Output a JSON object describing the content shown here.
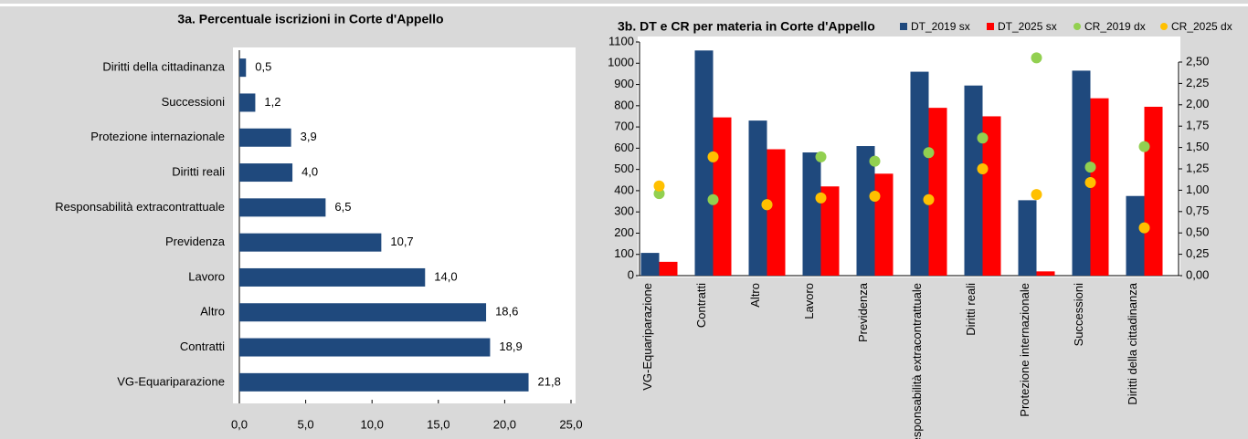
{
  "chart_data": [
    {
      "type": "hbar",
      "title": "3a. Percentuale iscrizioni in Corte d'Appello",
      "categories": [
        "Diritti della cittadinanza",
        "Successioni",
        "Protezione internazionale",
        "Diritti reali",
        "Responsabilità extracontrattuale",
        "Previdenza",
        "Lavoro",
        "Altro",
        "Contratti",
        "VG-Equariparazione"
      ],
      "values": [
        0.5,
        1.2,
        3.9,
        4.0,
        6.5,
        10.7,
        14.0,
        18.6,
        18.9,
        21.8
      ],
      "value_labels": [
        "0,5",
        "1,2",
        "3,9",
        "4,0",
        "6,5",
        "10,7",
        "14,0",
        "18,6",
        "18,9",
        "21,8"
      ],
      "color": "#1f497d",
      "xlim": [
        0,
        25
      ],
      "xticks": [
        {
          "value": 0,
          "label": "0,0"
        },
        {
          "value": 5,
          "label": "5,0"
        },
        {
          "value": 10,
          "label": "10,0"
        },
        {
          "value": 15,
          "label": "15,0"
        },
        {
          "value": 20,
          "label": "20,0"
        },
        {
          "value": 25,
          "label": "25,0"
        }
      ]
    },
    {
      "type": "bar_scatter",
      "title": "3b. DT  e CR  per materia in Corte d'Appello",
      "categories": [
        "VG-Equariparazione",
        "Contratti",
        "Altro",
        "Lavoro",
        "Previdenza",
        "Responsabilità extracontrattuale",
        "Diritti reali",
        "Protezione internazionale",
        "Successioni",
        "Diritti della cittadinanza"
      ],
      "series": [
        {
          "name": "DT_2019 sx",
          "color": "#1f497d",
          "values": [
            107,
            1060,
            730,
            580,
            610,
            960,
            895,
            355,
            965,
            375
          ]
        },
        {
          "name": "DT_2025 sx",
          "color": "#ff0000",
          "values": [
            65,
            745,
            595,
            420,
            480,
            790,
            750,
            20,
            835,
            795
          ]
        },
        {
          "name": "CR_2019 dx",
          "color": "#92d050",
          "axis": "y2",
          "values": [
            0.96,
            0.89,
            0.83,
            1.39,
            1.34,
            1.44,
            1.61,
            2.55,
            1.27,
            1.51
          ]
        },
        {
          "name": "CR_2025 dx",
          "color": "#ffc000",
          "axis": "y2",
          "values": [
            1.05,
            1.39,
            0.83,
            0.91,
            0.93,
            0.89,
            1.25,
            0.95,
            1.09,
            0.56
          ]
        }
      ],
      "ylim": [
        0,
        1100
      ],
      "yticks": [
        0,
        100,
        200,
        300,
        400,
        500,
        600,
        700,
        800,
        900,
        1000,
        1100
      ],
      "y2lim": [
        0,
        2.5
      ],
      "y2ticks": [
        {
          "value": 0,
          "label": "0,00"
        },
        {
          "value": 0.25,
          "label": "0,25"
        },
        {
          "value": 0.5,
          "label": "0,50"
        },
        {
          "value": 0.75,
          "label": "0,75"
        },
        {
          "value": 1,
          "label": "1,00"
        },
        {
          "value": 1.25,
          "label": "1,25"
        },
        {
          "value": 1.5,
          "label": "1,50"
        },
        {
          "value": 1.75,
          "label": "1,75"
        },
        {
          "value": 2,
          "label": "2,00"
        },
        {
          "value": 2.25,
          "label": "2,25"
        },
        {
          "value": 2.5,
          "label": "2,50"
        }
      ]
    }
  ]
}
